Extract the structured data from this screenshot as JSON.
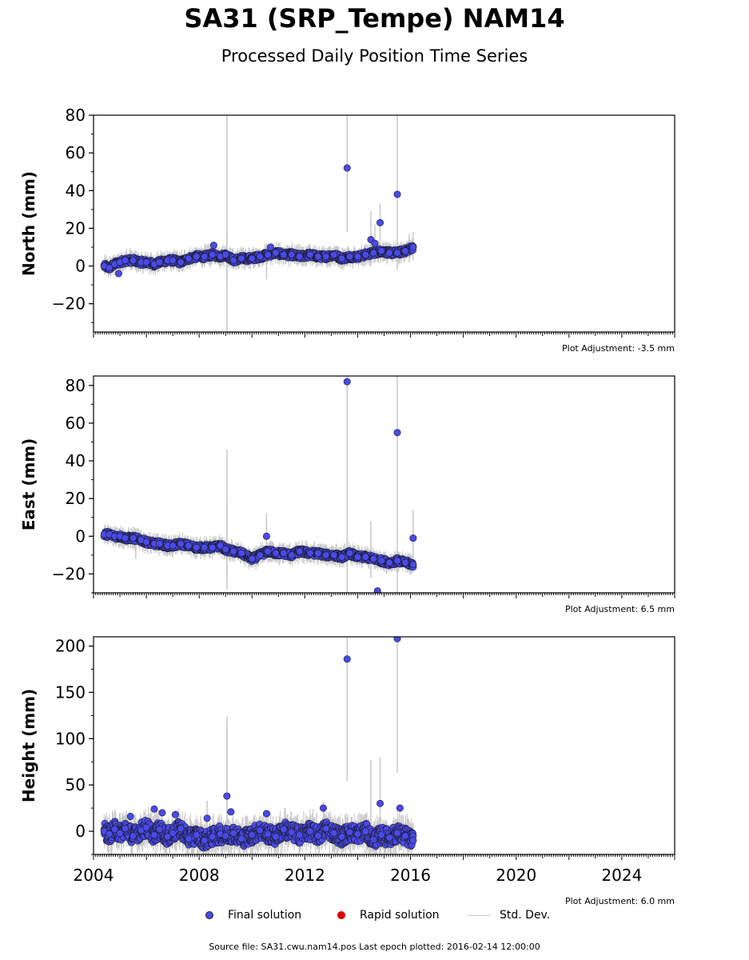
{
  "title": "SA31 (SRP_Tempe) NAM14",
  "subtitle": "Processed Daily Position Time Series",
  "legend": {
    "final": "Final solution",
    "rapid": "Rapid solution",
    "std": "Std. Dev.",
    "final_color": "#4a4ae8",
    "rapid_color": "#dd0000",
    "std_color": "#c8c8c8"
  },
  "footer": "Source file: SA31.cwu.nam14.pos  Last epoch plotted: 2016-02-14 12:00:00",
  "chart_data": [
    {
      "type": "scatter",
      "ylabel": "North (mm)",
      "adjustment": "Plot Adjustment: -3.5 mm",
      "xlim": [
        2004.0,
        2026.0
      ],
      "ylim": [
        -35,
        80
      ],
      "xticks": [
        2004,
        2008,
        2012,
        2016,
        2020,
        2024
      ],
      "yticks": [
        -20,
        0,
        20,
        40,
        60,
        80
      ],
      "series": [
        {
          "x": [
            2004.4,
            2004.6,
            2004.8,
            2005.0,
            2005.2,
            2005.5,
            2005.8,
            2006.0,
            2006.3,
            2006.5,
            2006.8,
            2007.0,
            2007.3,
            2007.6,
            2007.9,
            2008.2,
            2008.5,
            2008.8,
            2009.0,
            2009.3,
            2009.6,
            2010.0,
            2010.3,
            2010.6,
            2010.9,
            2011.2,
            2011.5,
            2011.8,
            2012.2,
            2012.5,
            2012.8,
            2013.1,
            2013.4,
            2013.7,
            2014.0,
            2014.3,
            2014.6,
            2014.9,
            2015.2,
            2015.5,
            2015.8,
            2016.1
          ],
          "y": [
            0,
            -1,
            1,
            2,
            3,
            3,
            2,
            2,
            1,
            2,
            3,
            3,
            2,
            4,
            5,
            5,
            6,
            5,
            6,
            3,
            4,
            4,
            5,
            6,
            7,
            6,
            6,
            5,
            6,
            5,
            5,
            6,
            4,
            5,
            5,
            6,
            7,
            8,
            7,
            7,
            8,
            10
          ]
        }
      ],
      "outliers": [
        {
          "x": 2013.6,
          "y": 52
        },
        {
          "x": 2015.5,
          "y": 38
        },
        {
          "x": 2014.85,
          "y": 23
        },
        {
          "x": 2014.5,
          "y": 14
        },
        {
          "x": 2014.65,
          "y": 12
        },
        {
          "x": 2008.55,
          "y": 11
        },
        {
          "x": 2010.7,
          "y": 10
        },
        {
          "x": 2004.95,
          "y": -4
        }
      ],
      "errorbars": [
        {
          "x": 2009.05,
          "lo": -35,
          "hi": 80
        },
        {
          "x": 2009.05,
          "lo": -10,
          "hi": 18
        },
        {
          "x": 2013.6,
          "lo": 18,
          "hi": 80
        },
        {
          "x": 2015.5,
          "lo": -2,
          "hi": 80
        },
        {
          "x": 2014.85,
          "lo": 8,
          "hi": 33
        },
        {
          "x": 2014.5,
          "lo": 0,
          "hi": 29
        },
        {
          "x": 2014.65,
          "lo": 2,
          "hi": 22
        },
        {
          "x": 2010.55,
          "lo": -7,
          "hi": 12
        },
        {
          "x": 2015.95,
          "lo": 2,
          "hi": 17
        },
        {
          "x": 2016.1,
          "lo": 3,
          "hi": 18
        }
      ]
    },
    {
      "type": "scatter",
      "ylabel": "East (mm)",
      "adjustment": "Plot Adjustment: 6.5 mm",
      "xlim": [
        2004.0,
        2026.0
      ],
      "ylim": [
        -30,
        85
      ],
      "xticks": [
        2004,
        2008,
        2012,
        2016,
        2020,
        2024
      ],
      "yticks": [
        -20,
        0,
        20,
        40,
        60,
        80
      ],
      "series": [
        {
          "x": [
            2004.4,
            2004.6,
            2004.8,
            2005.0,
            2005.2,
            2005.5,
            2005.8,
            2006.0,
            2006.3,
            2006.5,
            2006.8,
            2007.0,
            2007.3,
            2007.6,
            2007.9,
            2008.2,
            2008.5,
            2008.8,
            2009.0,
            2009.3,
            2009.6,
            2010.0,
            2010.3,
            2010.6,
            2010.9,
            2011.2,
            2011.5,
            2011.8,
            2012.2,
            2012.5,
            2012.8,
            2013.1,
            2013.4,
            2013.7,
            2014.0,
            2014.3,
            2014.6,
            2014.9,
            2015.2,
            2015.5,
            2015.8,
            2016.1
          ],
          "y": [
            1,
            1,
            0,
            0,
            -1,
            -1,
            -2,
            -3,
            -4,
            -4,
            -5,
            -5,
            -4,
            -5,
            -6,
            -6,
            -6,
            -5,
            -7,
            -8,
            -9,
            -12,
            -10,
            -8,
            -9,
            -9,
            -10,
            -8,
            -9,
            -9,
            -10,
            -10,
            -11,
            -9,
            -11,
            -11,
            -12,
            -13,
            -14,
            -13,
            -14,
            -15
          ]
        }
      ],
      "outliers": [
        {
          "x": 2013.6,
          "y": 82
        },
        {
          "x": 2015.5,
          "y": 55
        },
        {
          "x": 2010.55,
          "y": 0
        },
        {
          "x": 2016.1,
          "y": -1
        },
        {
          "x": 2014.75,
          "y": -29
        }
      ],
      "errorbars": [
        {
          "x": 2009.05,
          "lo": -28,
          "hi": 46
        },
        {
          "x": 2009.05,
          "lo": -22,
          "hi": 19
        },
        {
          "x": 2013.6,
          "lo": -30,
          "hi": 85
        },
        {
          "x": 2015.5,
          "lo": -30,
          "hi": 85
        },
        {
          "x": 2010.55,
          "lo": -8,
          "hi": 12
        },
        {
          "x": 2014.5,
          "lo": -22,
          "hi": 8
        },
        {
          "x": 2016.1,
          "lo": -12,
          "hi": 14
        },
        {
          "x": 2005.6,
          "lo": -12,
          "hi": 3
        }
      ]
    },
    {
      "type": "scatter",
      "ylabel": "Height (mm)",
      "adjustment": "Plot Adjustment: 6.0 mm",
      "xlim": [
        2004.0,
        2026.0
      ],
      "ylim": [
        -25,
        210
      ],
      "xticks": [
        2004,
        2008,
        2012,
        2016,
        2020,
        2024
      ],
      "xticklabels": [
        "2004",
        "2008",
        "2012",
        "2016",
        "2020",
        "2024"
      ],
      "yticks": [
        0,
        50,
        100,
        150,
        200
      ],
      "series": [
        {
          "x": [
            2004.4,
            2004.6,
            2004.8,
            2005.0,
            2005.2,
            2005.5,
            2005.8,
            2006.0,
            2006.3,
            2006.5,
            2006.8,
            2007.0,
            2007.3,
            2007.6,
            2007.9,
            2008.2,
            2008.5,
            2008.8,
            2009.0,
            2009.3,
            2009.6,
            2010.0,
            2010.3,
            2010.6,
            2010.9,
            2011.2,
            2011.5,
            2011.8,
            2012.2,
            2012.5,
            2012.8,
            2013.1,
            2013.4,
            2013.7,
            2014.0,
            2014.3,
            2014.6,
            2014.9,
            2015.2,
            2015.5,
            2015.8,
            2016.1
          ],
          "y": [
            0,
            -3,
            2,
            -2,
            3,
            -5,
            1,
            4,
            -4,
            2,
            -6,
            -2,
            3,
            -8,
            -4,
            -10,
            -6,
            -3,
            -5,
            -2,
            -8,
            -4,
            1,
            -3,
            -6,
            2,
            -1,
            -4,
            0,
            -5,
            3,
            -2,
            -6,
            -1,
            -3,
            0,
            -9,
            -4,
            -7,
            -2,
            -5,
            -10
          ]
        }
      ],
      "outliers": [
        {
          "x": 2013.6,
          "y": 186
        },
        {
          "x": 2015.5,
          "y": 208
        },
        {
          "x": 2009.05,
          "y": 38
        },
        {
          "x": 2014.85,
          "y": 30
        },
        {
          "x": 2015.6,
          "y": 25
        },
        {
          "x": 2012.7,
          "y": 25
        },
        {
          "x": 2006.6,
          "y": 20
        },
        {
          "x": 2007.1,
          "y": 18
        },
        {
          "x": 2009.2,
          "y": 21
        },
        {
          "x": 2010.55,
          "y": 19
        },
        {
          "x": 2005.4,
          "y": 16
        },
        {
          "x": 2008.3,
          "y": 14
        },
        {
          "x": 2006.3,
          "y": 24
        }
      ],
      "errorbars": [
        {
          "x": 2013.6,
          "lo": 54,
          "hi": 210
        },
        {
          "x": 2015.5,
          "lo": 63,
          "hi": 210
        },
        {
          "x": 2014.5,
          "lo": -20,
          "hi": 77
        },
        {
          "x": 2014.85,
          "lo": -5,
          "hi": 80
        },
        {
          "x": 2009.05,
          "lo": -20,
          "hi": 124
        },
        {
          "x": 2009.05,
          "lo": -10,
          "hi": 111
        },
        {
          "x": 2008.3,
          "lo": -5,
          "hi": 33
        },
        {
          "x": 2012.7,
          "lo": 0,
          "hi": 32
        }
      ]
    }
  ]
}
